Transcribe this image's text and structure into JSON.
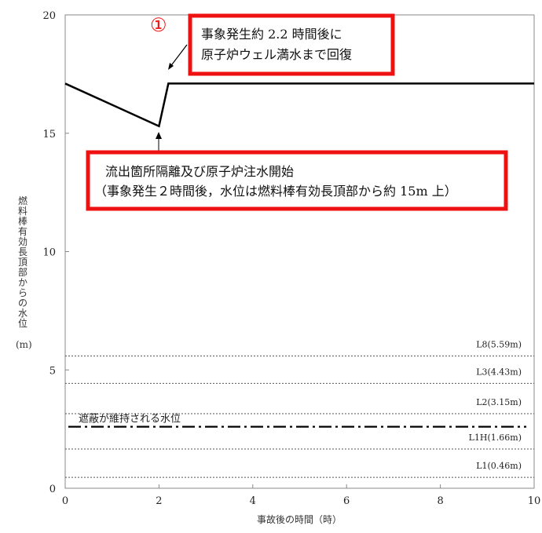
{
  "chart_data": {
    "type": "line",
    "xlabel": "事故後の時間（時）",
    "ylabel": "燃料棒有効長頂部からの水位",
    "ylabel_unit": "(m)",
    "xlim": [
      0,
      10
    ],
    "ylim": [
      0,
      20
    ],
    "xticks": [
      "0",
      "2",
      "4",
      "6",
      "8",
      "10"
    ],
    "yticks": [
      "0",
      "5",
      "10",
      "15",
      "20"
    ],
    "grid": false,
    "series": [
      {
        "x": [
          0,
          2,
          2.2,
          10
        ],
        "values": [
          17.1,
          15.3,
          17.1,
          17.1
        ],
        "color": "#000000"
      }
    ],
    "reference_lines": [
      {
        "label": "L8(5.59m)",
        "y": 5.59,
        "style": "dotted"
      },
      {
        "label": "L3(4.43m)",
        "y": 4.43,
        "style": "dotted"
      },
      {
        "label": "L2(3.15m)",
        "y": 3.15,
        "style": "dotted"
      },
      {
        "label": "遮蔽が維持される水位",
        "y": 2.6,
        "style": "dash-dot"
      },
      {
        "label": "L1H(1.66m)",
        "y": 1.66,
        "style": "dotted"
      },
      {
        "label": "L1(0.46m)",
        "y": 0.46,
        "style": "dotted"
      }
    ],
    "annotations": [
      {
        "marker": "①",
        "lines": [
          "事象発生約 2.2 時間後に",
          "原子炉ウェル満水まで回復"
        ],
        "x": 2.2,
        "y": 17.1,
        "box_color": "#ee1111"
      },
      {
        "lines": [
          "流出箇所隔離及び原子炉注水開始",
          "（事象発生２時間後，水位は燃料棒有効長頂部から約 15m 上）"
        ],
        "x": 2,
        "y": 15.3,
        "box_color": "#ee1111"
      }
    ]
  }
}
